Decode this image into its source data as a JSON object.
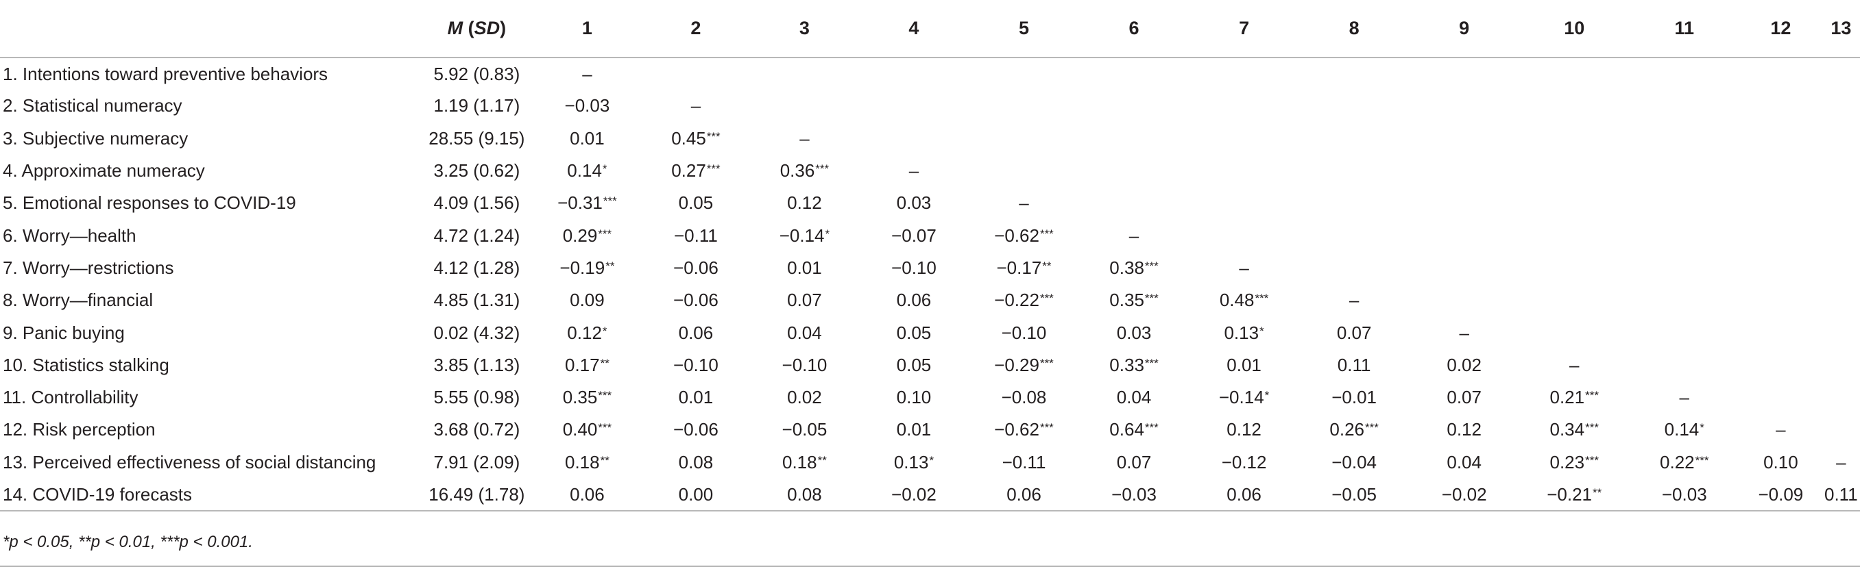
{
  "table": {
    "header": {
      "msd_label_m": "M",
      "msd_label_sd": "SD",
      "columns": [
        "1",
        "2",
        "3",
        "4",
        "5",
        "6",
        "7",
        "8",
        "9",
        "10",
        "11",
        "12",
        "13"
      ]
    },
    "rows": [
      {
        "label": "1. Intentions toward preventive behaviors",
        "msd": "5.92 (0.83)",
        "cells": [
          [
            "–",
            ""
          ],
          [
            "",
            ""
          ],
          [
            "",
            ""
          ],
          [
            "",
            ""
          ],
          [
            "",
            ""
          ],
          [
            "",
            ""
          ],
          [
            "",
            ""
          ],
          [
            "",
            ""
          ],
          [
            "",
            ""
          ],
          [
            "",
            ""
          ],
          [
            "",
            ""
          ],
          [
            "",
            ""
          ],
          [
            "",
            ""
          ]
        ]
      },
      {
        "label": "2. Statistical numeracy",
        "msd": "1.19 (1.17)",
        "cells": [
          [
            "−0.03",
            ""
          ],
          [
            "–",
            ""
          ],
          [
            "",
            ""
          ],
          [
            "",
            ""
          ],
          [
            "",
            ""
          ],
          [
            "",
            ""
          ],
          [
            "",
            ""
          ],
          [
            "",
            ""
          ],
          [
            "",
            ""
          ],
          [
            "",
            ""
          ],
          [
            "",
            ""
          ],
          [
            "",
            ""
          ],
          [
            "",
            ""
          ]
        ]
      },
      {
        "label": "3. Subjective numeracy",
        "msd": "28.55 (9.15)",
        "cells": [
          [
            "0.01",
            ""
          ],
          [
            "0.45",
            "***"
          ],
          [
            "–",
            ""
          ],
          [
            "",
            ""
          ],
          [
            "",
            ""
          ],
          [
            "",
            ""
          ],
          [
            "",
            ""
          ],
          [
            "",
            ""
          ],
          [
            "",
            ""
          ],
          [
            "",
            ""
          ],
          [
            "",
            ""
          ],
          [
            "",
            ""
          ],
          [
            "",
            ""
          ]
        ]
      },
      {
        "label": "4. Approximate numeracy",
        "msd": "3.25 (0.62)",
        "cells": [
          [
            "0.14",
            "*"
          ],
          [
            "0.27",
            "***"
          ],
          [
            "0.36",
            "***"
          ],
          [
            "–",
            ""
          ],
          [
            "",
            ""
          ],
          [
            "",
            ""
          ],
          [
            "",
            ""
          ],
          [
            "",
            ""
          ],
          [
            "",
            ""
          ],
          [
            "",
            ""
          ],
          [
            "",
            ""
          ],
          [
            "",
            ""
          ],
          [
            "",
            ""
          ]
        ]
      },
      {
        "label": "5. Emotional responses to COVID-19",
        "msd": "4.09 (1.56)",
        "cells": [
          [
            "−0.31",
            "***"
          ],
          [
            "0.05",
            ""
          ],
          [
            "0.12",
            ""
          ],
          [
            "0.03",
            ""
          ],
          [
            "–",
            ""
          ],
          [
            "",
            ""
          ],
          [
            "",
            ""
          ],
          [
            "",
            ""
          ],
          [
            "",
            ""
          ],
          [
            "",
            ""
          ],
          [
            "",
            ""
          ],
          [
            "",
            ""
          ],
          [
            "",
            ""
          ]
        ]
      },
      {
        "label": "6. Worry—health",
        "msd": "4.72 (1.24)",
        "cells": [
          [
            "0.29",
            "***"
          ],
          [
            "−0.11",
            ""
          ],
          [
            "−0.14",
            "*"
          ],
          [
            "−0.07",
            ""
          ],
          [
            "−0.62",
            "***"
          ],
          [
            "–",
            ""
          ],
          [
            "",
            ""
          ],
          [
            "",
            ""
          ],
          [
            "",
            ""
          ],
          [
            "",
            ""
          ],
          [
            "",
            ""
          ],
          [
            "",
            ""
          ],
          [
            "",
            ""
          ]
        ]
      },
      {
        "label": "7. Worry—restrictions",
        "msd": "4.12 (1.28)",
        "cells": [
          [
            "−0.19",
            "**"
          ],
          [
            "−0.06",
            ""
          ],
          [
            "0.01",
            ""
          ],
          [
            "−0.10",
            ""
          ],
          [
            "−0.17",
            "**"
          ],
          [
            "0.38",
            "***"
          ],
          [
            "–",
            ""
          ],
          [
            "",
            ""
          ],
          [
            "",
            ""
          ],
          [
            "",
            ""
          ],
          [
            "",
            ""
          ],
          [
            "",
            ""
          ],
          [
            "",
            ""
          ]
        ]
      },
      {
        "label": "8. Worry—financial",
        "msd": "4.85 (1.31)",
        "cells": [
          [
            "0.09",
            ""
          ],
          [
            "−0.06",
            ""
          ],
          [
            "0.07",
            ""
          ],
          [
            "0.06",
            ""
          ],
          [
            "−0.22",
            "***"
          ],
          [
            "0.35",
            "***"
          ],
          [
            "0.48",
            "***"
          ],
          [
            "–",
            ""
          ],
          [
            "",
            ""
          ],
          [
            "",
            ""
          ],
          [
            "",
            ""
          ],
          [
            "",
            ""
          ],
          [
            "",
            ""
          ]
        ]
      },
      {
        "label": "9. Panic buying",
        "msd": "0.02 (4.32)",
        "cells": [
          [
            "0.12",
            "*"
          ],
          [
            "0.06",
            ""
          ],
          [
            "0.04",
            ""
          ],
          [
            "0.05",
            ""
          ],
          [
            "−0.10",
            ""
          ],
          [
            "0.03",
            ""
          ],
          [
            "0.13",
            "*"
          ],
          [
            "0.07",
            ""
          ],
          [
            "–",
            ""
          ],
          [
            "",
            ""
          ],
          [
            "",
            ""
          ],
          [
            "",
            ""
          ],
          [
            "",
            ""
          ]
        ]
      },
      {
        "label": "10. Statistics stalking",
        "msd": "3.85 (1.13)",
        "cells": [
          [
            "0.17",
            "**"
          ],
          [
            "−0.10",
            ""
          ],
          [
            "−0.10",
            ""
          ],
          [
            "0.05",
            ""
          ],
          [
            "−0.29",
            "***"
          ],
          [
            "0.33",
            "***"
          ],
          [
            "0.01",
            ""
          ],
          [
            "0.11",
            ""
          ],
          [
            "0.02",
            ""
          ],
          [
            "–",
            ""
          ],
          [
            "",
            ""
          ],
          [
            "",
            ""
          ],
          [
            "",
            ""
          ]
        ]
      },
      {
        "label": "11. Controllability",
        "msd": "5.55 (0.98)",
        "cells": [
          [
            "0.35",
            "***"
          ],
          [
            "0.01",
            ""
          ],
          [
            "0.02",
            ""
          ],
          [
            "0.10",
            ""
          ],
          [
            "−0.08",
            ""
          ],
          [
            "0.04",
            ""
          ],
          [
            "−0.14",
            "*"
          ],
          [
            "−0.01",
            ""
          ],
          [
            "0.07",
            ""
          ],
          [
            "0.21",
            "***"
          ],
          [
            "–",
            ""
          ],
          [
            "",
            ""
          ],
          [
            "",
            ""
          ]
        ]
      },
      {
        "label": "12. Risk perception",
        "msd": "3.68 (0.72)",
        "cells": [
          [
            "0.40",
            "***"
          ],
          [
            "−0.06",
            ""
          ],
          [
            "−0.05",
            ""
          ],
          [
            "0.01",
            ""
          ],
          [
            "−0.62",
            "***"
          ],
          [
            "0.64",
            "***"
          ],
          [
            "0.12",
            ""
          ],
          [
            "0.26",
            "***"
          ],
          [
            "0.12",
            ""
          ],
          [
            "0.34",
            "***"
          ],
          [
            "0.14",
            "*"
          ],
          [
            "–",
            ""
          ],
          [
            "",
            ""
          ]
        ]
      },
      {
        "label": "13. Perceived effectiveness of social distancing",
        "msd": "7.91 (2.09)",
        "cells": [
          [
            "0.18",
            "**"
          ],
          [
            "0.08",
            ""
          ],
          [
            "0.18",
            "**"
          ],
          [
            "0.13",
            "*"
          ],
          [
            "−0.11",
            ""
          ],
          [
            "0.07",
            ""
          ],
          [
            "−0.12",
            ""
          ],
          [
            "−0.04",
            ""
          ],
          [
            "0.04",
            ""
          ],
          [
            "0.23",
            "***"
          ],
          [
            "0.22",
            "***"
          ],
          [
            "0.10",
            ""
          ],
          [
            "–",
            ""
          ]
        ]
      },
      {
        "label": "14. COVID-19 forecasts",
        "msd": "16.49 (1.78)",
        "cells": [
          [
            "0.06",
            ""
          ],
          [
            "0.00",
            ""
          ],
          [
            "0.08",
            ""
          ],
          [
            "−0.02",
            ""
          ],
          [
            "0.06",
            ""
          ],
          [
            "−0.03",
            ""
          ],
          [
            "0.06",
            ""
          ],
          [
            "−0.05",
            ""
          ],
          [
            "−0.02",
            ""
          ],
          [
            "−0.21",
            "**"
          ],
          [
            "−0.03",
            ""
          ],
          [
            "−0.09",
            ""
          ],
          [
            "0.11",
            ""
          ]
        ]
      }
    ],
    "footnote": "*p < 0.05, **p < 0.01, ***p < 0.001."
  }
}
